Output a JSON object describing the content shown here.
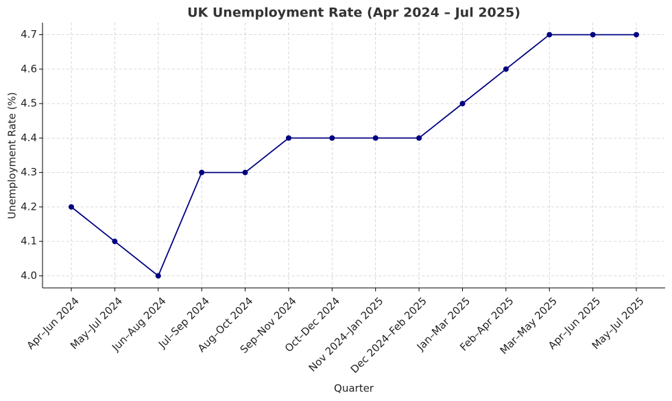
{
  "chart_data": {
    "type": "line",
    "title": "UK Unemployment Rate (Apr 2024 – Jul 2025)",
    "x_label": "Quarter",
    "y_label": "Unemployment Rate (%)",
    "categories": [
      "Apr–Jun 2024",
      "May–Jul 2024",
      "Jun–Aug 2024",
      "Jul–Sep 2024",
      "Aug–Oct 2024",
      "Sep–Nov 2024",
      "Oct–Dec 2024",
      "Nov 2024–Jan 2025",
      "Dec 2024–Feb 2025",
      "Jan–Mar 2025",
      "Feb–Apr 2025",
      "Mar–May 2025",
      "Apr–Jun 2025",
      "May–Jul 2025"
    ],
    "series": [
      {
        "name": "Unemployment Rate",
        "color": "#000080",
        "values": [
          4.2,
          4.1,
          4.0,
          4.3,
          4.3,
          4.4,
          4.4,
          4.4,
          4.4,
          4.5,
          4.6,
          4.7,
          4.7,
          4.7
        ]
      }
    ],
    "ylim": [
      3.965,
      4.735
    ],
    "yticks": [
      {
        "value": 4,
        "label": "4.0"
      },
      4.1,
      4.2,
      4.3,
      4.4,
      4.5,
      4.6,
      4.7
    ],
    "grid": true
  }
}
